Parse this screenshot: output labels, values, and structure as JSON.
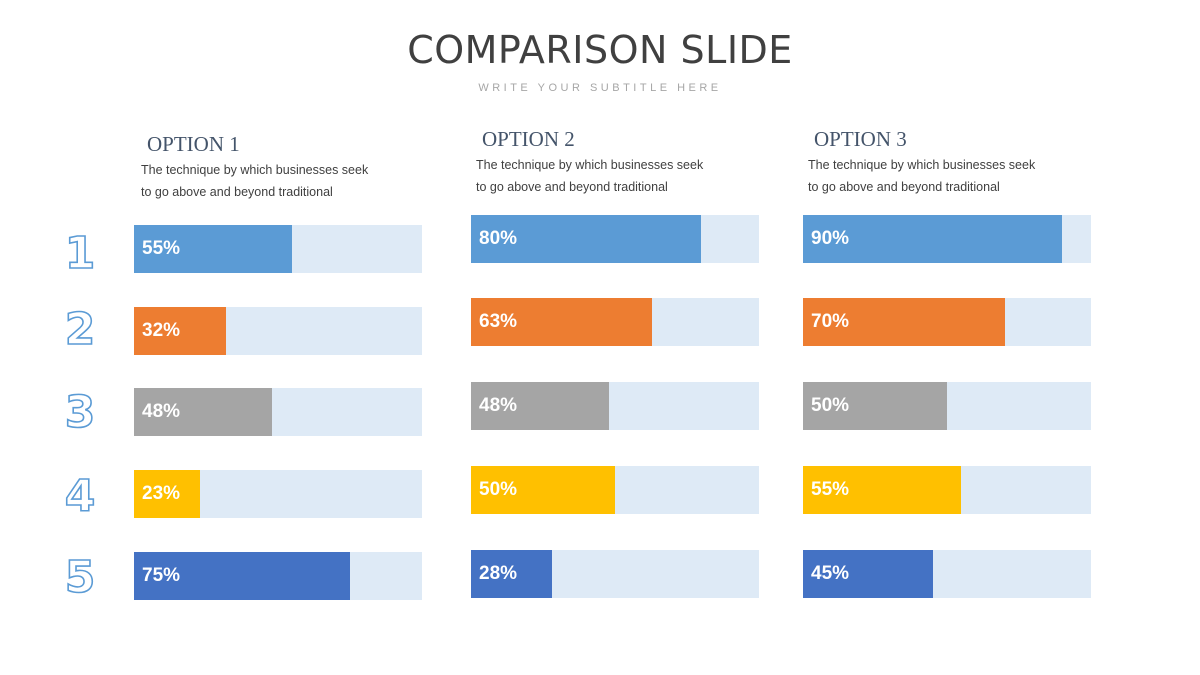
{
  "title": "COMPARISON SLIDE",
  "subtitle": "WRITE YOUR SUBTITLE HERE",
  "row_numbers": [
    "1",
    "2",
    "3",
    "4",
    "5"
  ],
  "colors": [
    "#5b9bd5",
    "#ed7d31",
    "#a5a5a5",
    "#ffc000",
    "#4472c4"
  ],
  "track_color": "#deeaf6",
  "number_color": "#5b9bd5",
  "options": [
    {
      "title": "OPTION 1",
      "description_line1": "The technique by which businesses seek",
      "description_line2": "to go above and beyond traditional",
      "labels": [
        "55%",
        "32%",
        "48%",
        "23%",
        "75%"
      ]
    },
    {
      "title": "OPTION 2",
      "description_line1": "The technique by which businesses seek",
      "description_line2": "to go above and beyond traditional",
      "labels": [
        "80%",
        "63%",
        "48%",
        "50%",
        "28%"
      ]
    },
    {
      "title": "OPTION 3",
      "description_line1": "The technique by which businesses seek",
      "description_line2": "to go above and beyond traditional",
      "labels": [
        "90%",
        "70%",
        "50%",
        "55%",
        "45%"
      ]
    }
  ],
  "chart_data": {
    "type": "bar",
    "orientation": "horizontal",
    "categories": [
      "1",
      "2",
      "3",
      "4",
      "5"
    ],
    "series": [
      {
        "name": "OPTION 1",
        "values": [
          55,
          32,
          48,
          23,
          75
        ]
      },
      {
        "name": "OPTION 2",
        "values": [
          80,
          63,
          48,
          50,
          28
        ]
      },
      {
        "name": "OPTION 3",
        "values": [
          90,
          70,
          50,
          55,
          45
        ]
      }
    ],
    "xlim": [
      0,
      100
    ],
    "unit": "%",
    "grid": false
  }
}
